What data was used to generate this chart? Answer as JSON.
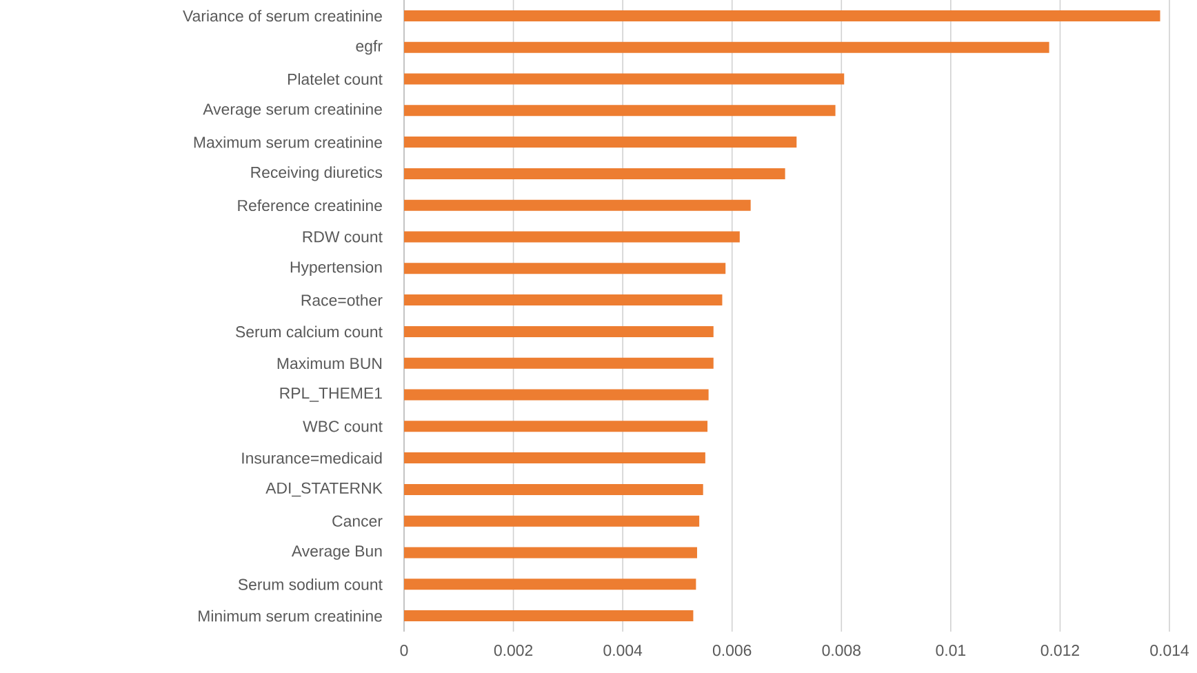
{
  "chart_data": {
    "type": "bar",
    "orientation": "horizontal",
    "categories": [
      "Variance of serum creatinine",
      "egfr",
      "Platelet count",
      "Average serum creatinine",
      "Maximum serum creatinine",
      "Receiving diuretics",
      "Reference creatinine",
      "RDW count",
      "Hypertension",
      "Race=other",
      "Serum calcium count",
      "Maximum BUN",
      "RPL_THEME1",
      "WBC count",
      "Insurance=medicaid",
      "ADI_STATERNK",
      "Cancer",
      "Average Bun",
      "Serum sodium count",
      "Minimum serum creatinine"
    ],
    "values": [
      0.01383,
      0.0118,
      0.00805,
      0.00789,
      0.00718,
      0.00697,
      0.00634,
      0.00614,
      0.00588,
      0.00582,
      0.00566,
      0.00566,
      0.00557,
      0.00555,
      0.00551,
      0.00547,
      0.0054,
      0.00536,
      0.00534,
      0.00529
    ],
    "color": "#ed7d31",
    "xlim": [
      0,
      0.014
    ],
    "xticks": [
      0,
      0.002,
      0.004,
      0.006,
      0.008,
      0.01,
      0.012,
      0.014
    ],
    "grid": "x"
  }
}
